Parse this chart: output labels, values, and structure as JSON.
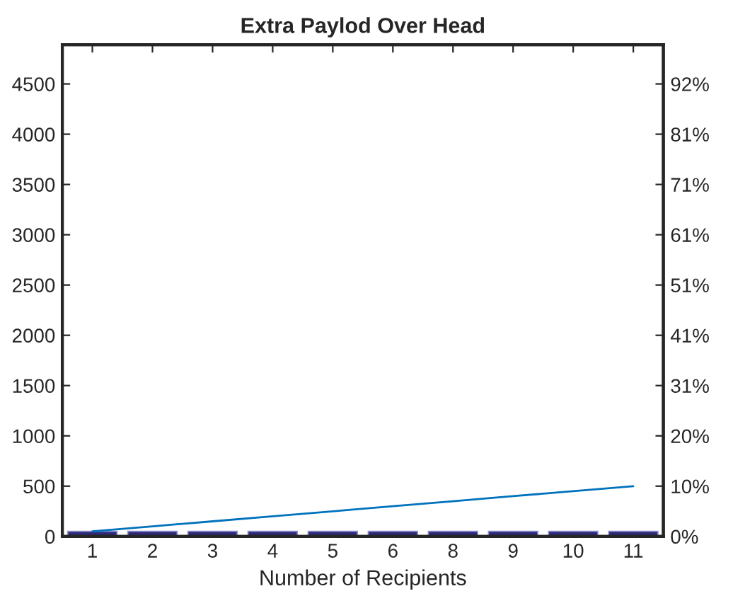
{
  "chart_data": {
    "type": "bar",
    "title": "Extra Paylod Over Head",
    "xlabel": "Number of Recipients",
    "categories": [
      "1",
      "2",
      "3",
      "4",
      "5",
      "6",
      "8",
      "9",
      "10",
      "11"
    ],
    "series": [
      {
        "color": "#2e2a78",
        "values": [
          50,
          50,
          50,
          50,
          50,
          50,
          50,
          50,
          50,
          50
        ]
      },
      {
        "type": "line",
        "color": "#0072bd",
        "values": [
          50,
          100,
          150,
          200,
          250,
          300,
          350,
          400,
          450,
          500
        ]
      }
    ],
    "ylim": [
      0,
      4890
    ],
    "yticks": [
      0,
      500,
      1000,
      1500,
      2000,
      2500,
      3000,
      3500,
      4000,
      4500
    ],
    "y2lim": [
      0,
      99.56
    ],
    "y2ticks": [
      {
        "value": 0,
        "label": "0%"
      },
      {
        "value": 10.18,
        "label": "10%"
      },
      {
        "value": 20.36,
        "label": "20%"
      },
      {
        "value": 30.54,
        "label": "31%"
      },
      {
        "value": 40.72,
        "label": "41%"
      },
      {
        "value": 50.9,
        "label": "51%"
      },
      {
        "value": 61.08,
        "label": "61%"
      },
      {
        "value": 71.26,
        "label": "71%"
      },
      {
        "value": 81.44,
        "label": "81%"
      },
      {
        "value": 91.62,
        "label": "92%"
      }
    ],
    "grid": false,
    "legend": false,
    "line_style": "solid",
    "marker": "none"
  }
}
